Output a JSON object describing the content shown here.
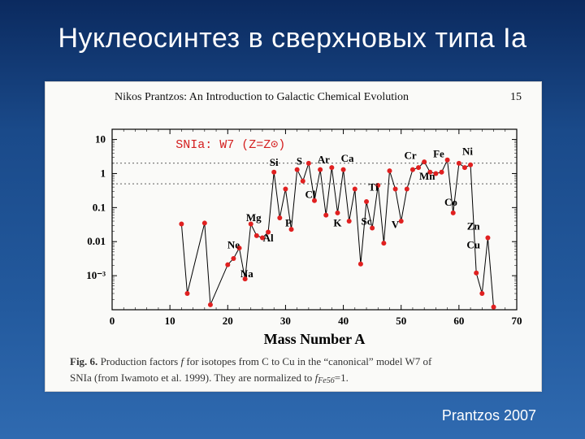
{
  "slide": {
    "title": "Нуклеосинтез в сверхновых типа Ia",
    "credit": "Prantzos 2007",
    "bg_gradient": [
      "#0b2a5f",
      "#1a4a8a",
      "#235a9e",
      "#2f6ab0"
    ]
  },
  "figure": {
    "type": "scatter",
    "background_color": "#fafaf8",
    "header": "Nikos Prantzos: An Introduction to Galactic Chemical Evolution",
    "page_number": "15",
    "inplot_label": "SNIa: W7 (Z=Z⊙)",
    "inplot_label_color": "#d42020",
    "xlabel": "Mass Number A",
    "xlim": [
      0,
      70
    ],
    "xtick_step": 10,
    "xticks": [
      0,
      10,
      20,
      30,
      40,
      50,
      60,
      70
    ],
    "ylabel_implicit": "production factor f (log)",
    "ylog": true,
    "ylim_exp": [
      -4,
      1.3
    ],
    "ytick_exp": [
      -3,
      -2,
      -1,
      0,
      1
    ],
    "ytick_labels": [
      "10⁻³",
      "0.01",
      "0.1",
      "1",
      "10"
    ],
    "hbands_y": [
      0.5,
      2
    ],
    "marker_color": "#e02020",
    "marker_radius": 3,
    "line_color": "#000000",
    "line_width": 1,
    "axis_color": "#000000",
    "label_fontsize": 18,
    "tick_fontsize": 13,
    "series": [
      {
        "A": 12,
        "y": 0.033
      },
      {
        "A": 13,
        "y": 0.0003
      },
      {
        "A": 16,
        "y": 0.035
      },
      {
        "A": 17,
        "y": 0.00014
      },
      {
        "A": 20,
        "y": 0.0021
      },
      {
        "A": 21,
        "y": 0.0032
      },
      {
        "A": 22,
        "y": 0.0065
      },
      {
        "A": 23,
        "y": 0.0008
      },
      {
        "A": 24,
        "y": 0.033
      },
      {
        "A": 25,
        "y": 0.015
      },
      {
        "A": 26,
        "y": 0.013
      },
      {
        "A": 27,
        "y": 0.019
      },
      {
        "A": 28,
        "y": 1.1
      },
      {
        "A": 29,
        "y": 0.05
      },
      {
        "A": 30,
        "y": 0.35
      },
      {
        "A": 31,
        "y": 0.023
      },
      {
        "A": 32,
        "y": 1.3
      },
      {
        "A": 33,
        "y": 0.6
      },
      {
        "A": 34,
        "y": 2.0
      },
      {
        "A": 35,
        "y": 0.16
      },
      {
        "A": 36,
        "y": 1.3
      },
      {
        "A": 37,
        "y": 0.06
      },
      {
        "A": 38,
        "y": 1.5
      },
      {
        "A": 39,
        "y": 0.07
      },
      {
        "A": 40,
        "y": 1.3
      },
      {
        "A": 41,
        "y": 0.04
      },
      {
        "A": 42,
        "y": 0.35
      },
      {
        "A": 43,
        "y": 0.0022
      },
      {
        "A": 44,
        "y": 0.15
      },
      {
        "A": 45,
        "y": 0.025
      },
      {
        "A": 46,
        "y": 0.45
      },
      {
        "A": 47,
        "y": 0.009
      },
      {
        "A": 48,
        "y": 1.2
      },
      {
        "A": 49,
        "y": 0.35
      },
      {
        "A": 50,
        "y": 0.04
      },
      {
        "A": 51,
        "y": 0.35
      },
      {
        "A": 52,
        "y": 1.3
      },
      {
        "A": 53,
        "y": 1.5
      },
      {
        "A": 54,
        "y": 2.2
      },
      {
        "A": 55,
        "y": 1.1
      },
      {
        "A": 56,
        "y": 1.0
      },
      {
        "A": 57,
        "y": 1.1
      },
      {
        "A": 58,
        "y": 2.5
      },
      {
        "A": 59,
        "y": 0.07
      },
      {
        "A": 60,
        "y": 2.0
      },
      {
        "A": 61,
        "y": 1.5
      },
      {
        "A": 62,
        "y": 1.8
      },
      {
        "A": 63,
        "y": 0.0012
      },
      {
        "A": 64,
        "y": 0.0003
      },
      {
        "A": 65,
        "y": 0.013
      },
      {
        "A": 66,
        "y": 0.00012
      }
    ],
    "element_labels": [
      {
        "text": "Ne",
        "x": 21,
        "y_exp": -2.2
      },
      {
        "text": "Na",
        "x": 23.3,
        "y_exp": -3.05
      },
      {
        "text": "Mg",
        "x": 24.5,
        "y_exp": -1.4
      },
      {
        "text": "Al",
        "x": 27,
        "y_exp": -2.0
      },
      {
        "text": "Si",
        "x": 28,
        "y_exp": 0.22
      },
      {
        "text": "P",
        "x": 30.5,
        "y_exp": -1.55
      },
      {
        "text": "S",
        "x": 32.4,
        "y_exp": 0.26
      },
      {
        "text": "Cl",
        "x": 34.3,
        "y_exp": -0.72
      },
      {
        "text": "Ar",
        "x": 36.6,
        "y_exp": 0.31
      },
      {
        "text": "K",
        "x": 39,
        "y_exp": -1.55
      },
      {
        "text": "Ca",
        "x": 40.7,
        "y_exp": 0.35
      },
      {
        "text": "Sc",
        "x": 44,
        "y_exp": -1.5
      },
      {
        "text": "Ti",
        "x": 45.2,
        "y_exp": -0.5
      },
      {
        "text": "V",
        "x": 49,
        "y_exp": -1.6
      },
      {
        "text": "Cr",
        "x": 51.6,
        "y_exp": 0.43
      },
      {
        "text": "Mn",
        "x": 54.5,
        "y_exp": -0.18
      },
      {
        "text": "Fe",
        "x": 56.5,
        "y_exp": 0.48
      },
      {
        "text": "Co",
        "x": 58.6,
        "y_exp": -0.95
      },
      {
        "text": "Ni",
        "x": 61.5,
        "y_exp": 0.55
      },
      {
        "text": "Cu",
        "x": 62.5,
        "y_exp": -2.2
      },
      {
        "text": "Zn",
        "x": 62.5,
        "y_exp": -1.65
      }
    ],
    "caption_parts": {
      "lead": "Fig. 6.",
      "body1": " Production factors ",
      "ital1": "f",
      "body2": " for isotopes from C to Cu in the “canonical” model W7 of",
      "body3": "SNIa (from Iwamoto et al. 1999). They are normalized to ",
      "ital2": "f",
      "sub": "Fe56",
      "tail": "=1."
    }
  }
}
